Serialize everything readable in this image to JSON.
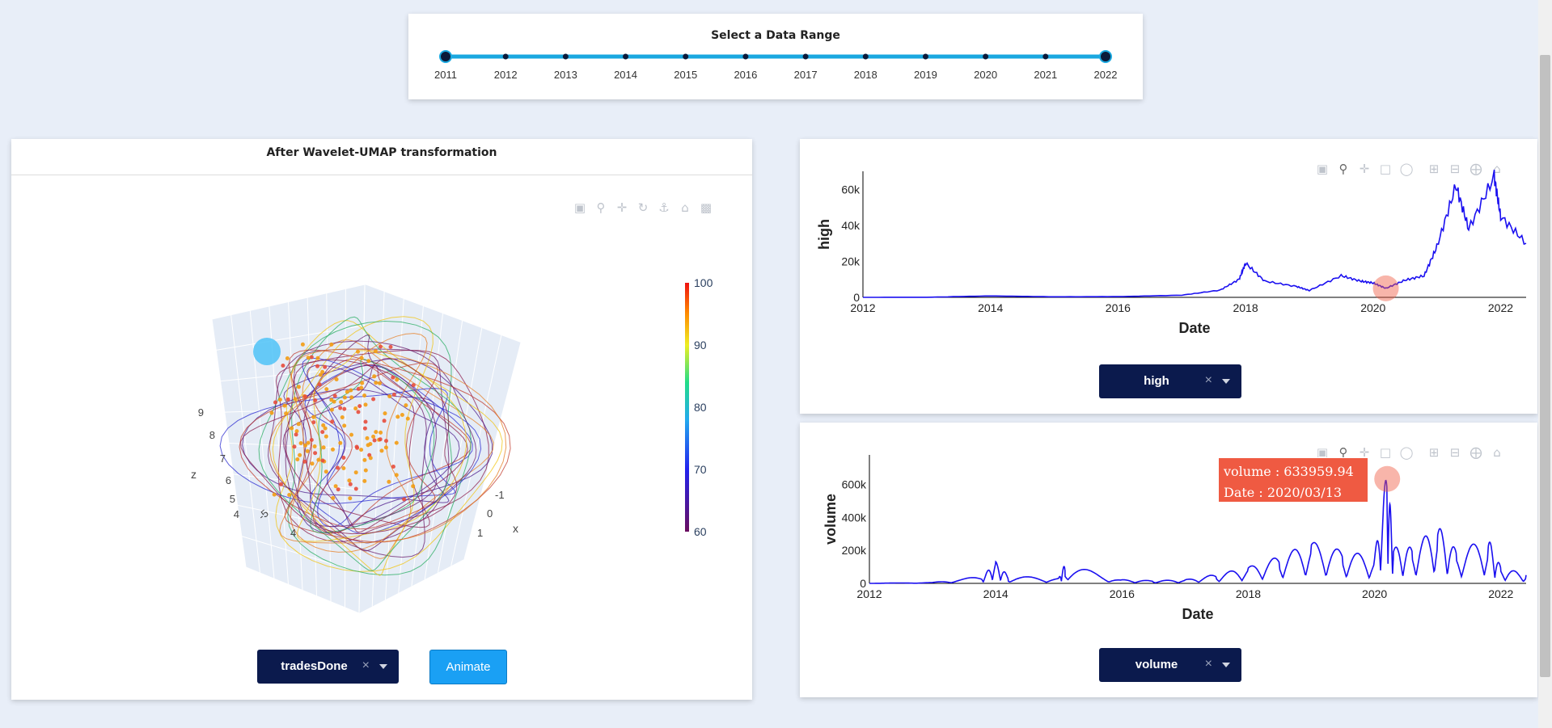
{
  "range_slider": {
    "title": "Select a Data Range",
    "years": [
      "2011",
      "2012",
      "2013",
      "2014",
      "2015",
      "2016",
      "2017",
      "2018",
      "2019",
      "2020",
      "2021",
      "2022"
    ],
    "selected_start": "2011",
    "selected_end": "2022"
  },
  "umap": {
    "title": "After Wavelet-UMAP transformation",
    "dropdown_value": "tradesDone",
    "animate_label": "Animate",
    "toolbar": [
      "camera-icon",
      "zoom-icon",
      "pan-icon",
      "orbit-icon",
      "turntable-icon",
      "home-icon",
      "camera-video-icon"
    ],
    "chart_data": {
      "type": "scatter",
      "axes": {
        "x_label": "x",
        "z_label": "z",
        "z_ticks": [
          "4",
          "5",
          "6",
          "7",
          "8",
          "9"
        ],
        "x_ticks": [
          "-1",
          "0",
          "1"
        ],
        "y_ticks": [
          "-5",
          "4"
        ]
      },
      "colorbar": {
        "ticks": [
          "60",
          "70",
          "80",
          "90",
          "100"
        ],
        "range": [
          60,
          100
        ]
      }
    }
  },
  "high_chart": {
    "dropdown_value": "high",
    "toolbar": [
      "camera-icon",
      "zoom-icon",
      "pan-icon",
      "box-select-icon",
      "lasso-icon",
      "zoom-in-icon",
      "zoom-out-icon",
      "autoscale-icon",
      "home-icon"
    ],
    "chart_data": {
      "type": "line",
      "xlabel": "Date",
      "ylabel": "high",
      "x_ticks": [
        "2012",
        "2014",
        "2016",
        "2018",
        "2020",
        "2022"
      ],
      "y_ticks": [
        "0",
        "20k",
        "40k",
        "60k"
      ],
      "ylim": [
        0,
        70000
      ],
      "xlim": [
        2012,
        2022.4
      ],
      "x": [
        2012,
        2013,
        2014,
        2015,
        2016,
        2017,
        2017.6,
        2017.9,
        2018.0,
        2018.3,
        2018.8,
        2019.0,
        2019.5,
        2019.8,
        2020.0,
        2020.2,
        2020.5,
        2020.8,
        2021.0,
        2021.3,
        2021.5,
        2021.9,
        2022.0,
        2022.4
      ],
      "y": [
        10,
        50,
        800,
        300,
        400,
        1200,
        4000,
        10000,
        19000,
        9000,
        6000,
        3800,
        12000,
        9000,
        8000,
        5000,
        9500,
        12000,
        28000,
        62000,
        38000,
        67000,
        45000,
        30000
      ]
    }
  },
  "volume_chart": {
    "dropdown_value": "volume",
    "tooltip": {
      "line1": "volume : 633959.94",
      "line2": "Date : 2020/03/13"
    },
    "toolbar": [
      "camera-icon",
      "zoom-icon",
      "pan-icon",
      "box-select-icon",
      "lasso-icon",
      "zoom-in-icon",
      "zoom-out-icon",
      "autoscale-icon",
      "home-icon"
    ],
    "chart_data": {
      "type": "line",
      "xlabel": "Date",
      "ylabel": "volume",
      "x_ticks": [
        "2012",
        "2014",
        "2016",
        "2018",
        "2020",
        "2022"
      ],
      "y_ticks": [
        "0",
        "200k",
        "400k",
        "600k"
      ],
      "ylim": [
        0,
        780000
      ],
      "xlim": [
        2012,
        2022.4
      ],
      "x": [
        2012,
        2013,
        2013.8,
        2014.0,
        2014.2,
        2015.0,
        2015.1,
        2016.0,
        2016.5,
        2017.0,
        2017.5,
        2018.0,
        2018.5,
        2019.0,
        2019.5,
        2020.0,
        2020.2,
        2020.3,
        2020.6,
        2021.0,
        2021.3,
        2021.8,
        2022.0,
        2022.4
      ],
      "y": [
        0,
        5000,
        40000,
        120000,
        40000,
        30000,
        110000,
        20000,
        15000,
        20000,
        50000,
        90000,
        150000,
        230000,
        180000,
        150000,
        633960,
        200000,
        200000,
        320000,
        180000,
        250000,
        90000,
        50000
      ]
    }
  }
}
